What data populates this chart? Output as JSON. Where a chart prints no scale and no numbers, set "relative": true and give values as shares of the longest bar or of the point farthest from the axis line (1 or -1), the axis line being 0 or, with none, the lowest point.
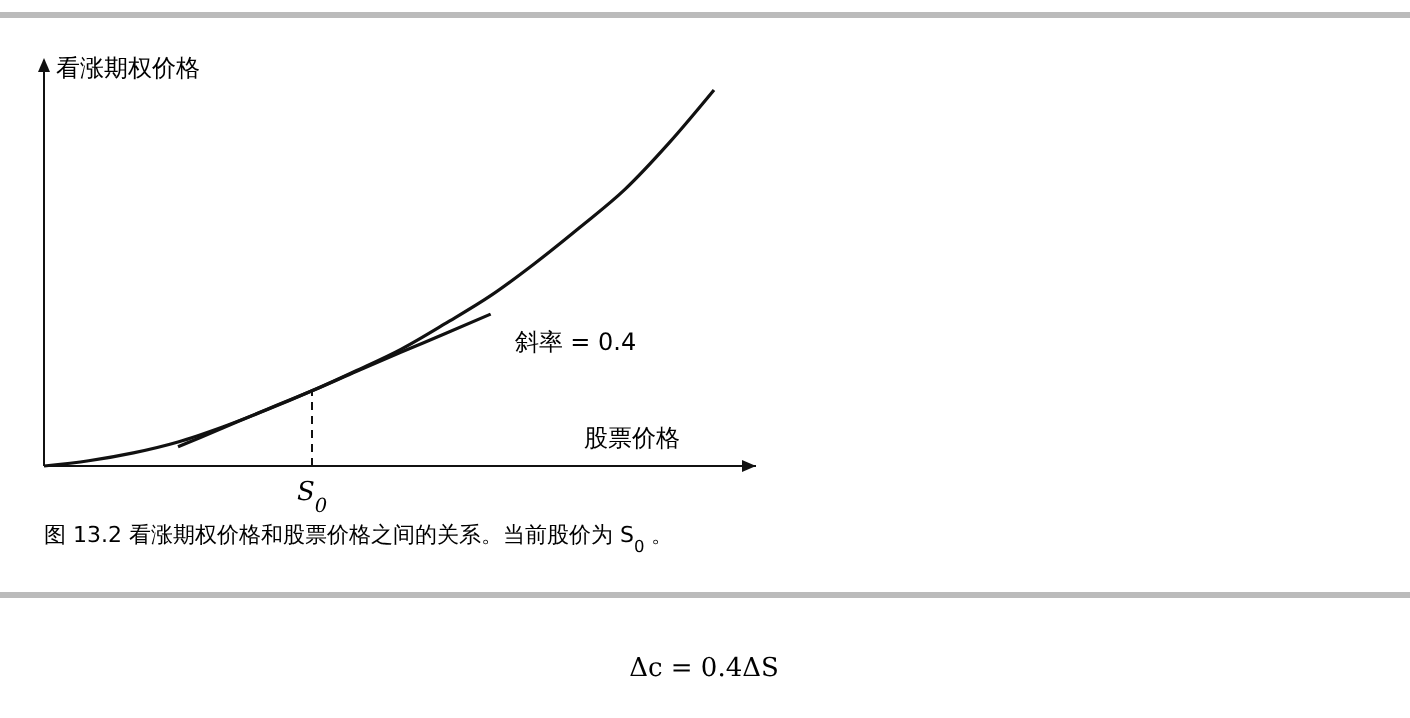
{
  "chart_data": {
    "type": "line",
    "relative": true,
    "xlabel": "股票价格",
    "ylabel": "看涨期权价格",
    "categories": [
      null,
      null,
      null,
      null,
      null,
      null,
      null,
      null,
      null,
      null,
      null,
      null,
      null,
      null,
      null,
      null
    ],
    "series": [
      {
        "color": "#111111",
        "values": [
          0,
          0.014,
          0.035,
          0.064,
          0.104,
          0.15,
          0.2,
          0.254,
          0.311,
          0.38,
          0.453,
          0.54,
          0.635,
          0.735,
          0.86,
          1
        ],
        "line_style": "solid"
      },
      {
        "color": "#111111",
        "values": [
          null,
          null,
          null,
          0.051,
          0.101,
          0.151,
          0.2,
          0.252,
          0.303,
          0.353,
          0.404,
          null,
          null,
          null,
          null,
          null
        ],
        "line_style": "solid"
      }
    ],
    "annotations": [
      "斜率 = 0.4",
      "S$_{0}$",
      "图 13.2  看涨期权价格和股票价格之间的关系。当前股价为 S$_{0}$。",
      "Δc = 0.4ΔS"
    ]
  }
}
